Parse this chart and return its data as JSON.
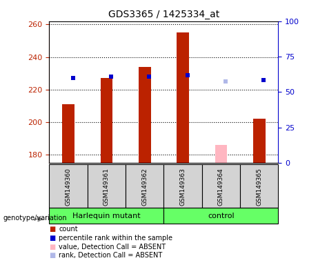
{
  "title": "GDS3365 / 1425334_at",
  "samples": [
    "GSM149360",
    "GSM149361",
    "GSM149362",
    "GSM149363",
    "GSM149364",
    "GSM149365"
  ],
  "group_labels": [
    "Harlequin mutant",
    "control"
  ],
  "group_boundaries": [
    0,
    3,
    6
  ],
  "ylim_left": [
    175,
    262
  ],
  "ylim_right": [
    0,
    100
  ],
  "yticks_left": [
    180,
    200,
    220,
    240,
    260
  ],
  "yticks_right": [
    0,
    25,
    50,
    75,
    100
  ],
  "bar_base": 175,
  "count_values": [
    211,
    227,
    234,
    255,
    null,
    202
  ],
  "count_color": "#bb2200",
  "rank_values": [
    227,
    228,
    228,
    229,
    null,
    226
  ],
  "rank_color": "#0000cc",
  "absent_value_values": [
    null,
    null,
    null,
    null,
    186,
    null
  ],
  "absent_value_color": "#ffb6c1",
  "absent_rank_values": [
    null,
    null,
    null,
    null,
    225,
    null
  ],
  "absent_rank_color": "#b0b8e8",
  "bar_width": 0.32,
  "rank_marker_size": 5,
  "right_axis_color": "#0000cc",
  "left_axis_color": "#bb2200",
  "background_color": "#ffffff",
  "plot_bg_color": "#ffffff",
  "sample_box_color": "#d3d3d3",
  "group_box_color": "#66ff66",
  "legend_items": [
    {
      "label": "count",
      "color": "#bb2200"
    },
    {
      "label": "percentile rank within the sample",
      "color": "#0000cc"
    },
    {
      "label": "value, Detection Call = ABSENT",
      "color": "#ffb6c1"
    },
    {
      "label": "rank, Detection Call = ABSENT",
      "color": "#b0b8e8"
    }
  ]
}
